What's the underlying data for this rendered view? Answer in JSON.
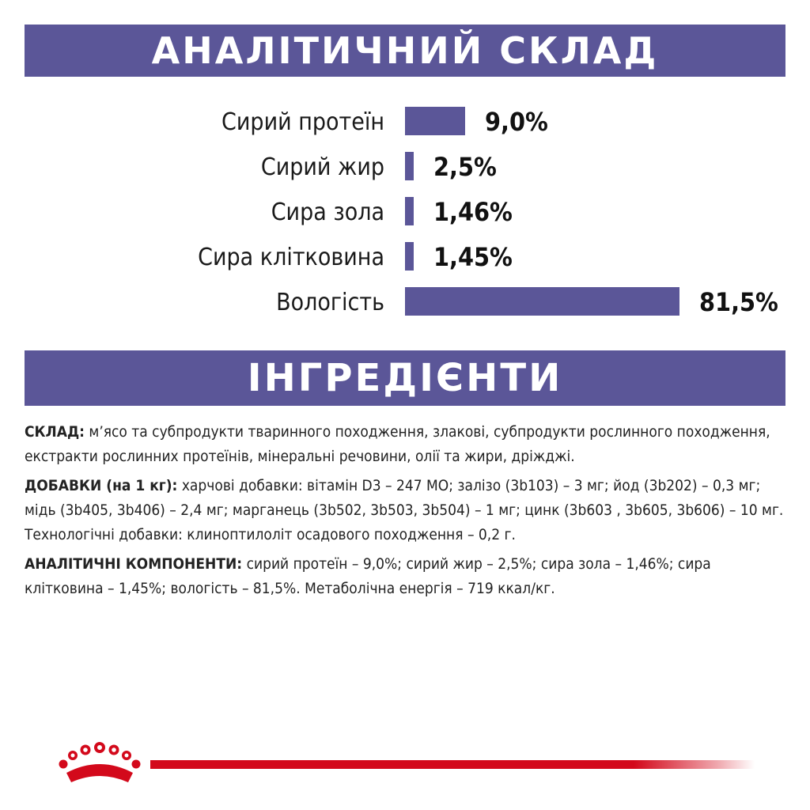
{
  "headers": {
    "analysis": "АНАЛІТИЧНИЙ СКЛАД",
    "ingredients": "ІНГРЕДІЄНТИ"
  },
  "chart_data": {
    "type": "bar",
    "orientation": "horizontal",
    "categories": [
      "Сирий протеїн",
      "Сирий жир",
      "Сира зола",
      "Сира клітковина",
      "Вологість"
    ],
    "values": [
      9.0,
      2.5,
      1.46,
      1.45,
      81.5
    ],
    "value_labels": [
      "9,0%",
      "2,5%",
      "1,46%",
      "1,45%",
      "81,5%"
    ],
    "unit": "%",
    "color": "#5b5698",
    "grid": false
  },
  "ingredients": {
    "composition_label": "СКЛАД:",
    "composition_text": " м’ясо та субпродукти тваринного походження, злакові, субпродукти рослинного походження, екстракти рослинних протеїнів, мінеральні речовини, олії та жири, дріжджі.",
    "additives_label": "ДОБАВКИ (на 1 кг):",
    "additives_text": " харчові добавки: вітамін D3 – 247 МО; залізо (3b103) – 3 мг; йод (3b202) – 0,3 мг; мідь (3b405, 3b406) – 2,4 мг; марганець (3b502, 3b503, 3b504) – 1 мг; цинк (3b603 , 3b605, 3b606) – 10 мг. Технологічні добавки: клиноптилоліт осадового походження – 0,2 г.",
    "components_label": "АНАЛІТИЧНІ КОМПОНЕНТИ:",
    "components_text": " сирий протеїн – 9,0%; сирий жир – 2,5%; сира зола – 1,46%; сира клітковина – 1,45%; вологість – 81,5%. Метаболічна енергія – 719 ккал/кг."
  },
  "brand": {
    "logo": "crown-logo",
    "accent_color": "#d3091b"
  }
}
